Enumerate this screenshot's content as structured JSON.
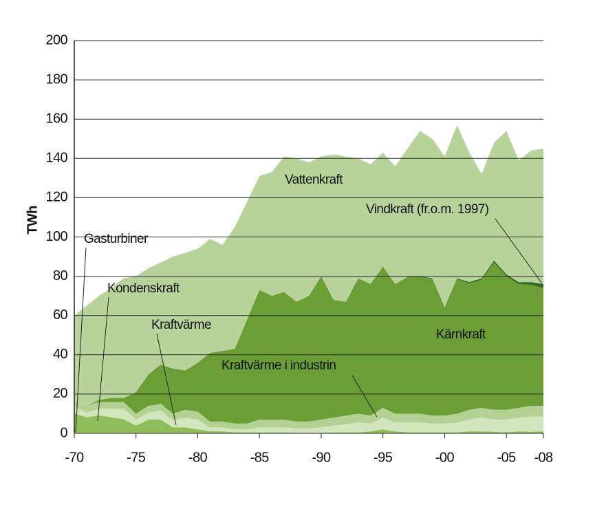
{
  "chart_data": {
    "type": "area",
    "stacked": true,
    "y_label": "TWh",
    "x": [
      1970,
      1971,
      1972,
      1973,
      1974,
      1975,
      1976,
      1977,
      1978,
      1979,
      1980,
      1981,
      1982,
      1983,
      1984,
      1985,
      1986,
      1987,
      1988,
      1989,
      1990,
      1991,
      1992,
      1993,
      1994,
      1995,
      1996,
      1997,
      1998,
      1999,
      2000,
      2001,
      2002,
      2003,
      2004,
      2005,
      2006,
      2007,
      2008
    ],
    "xlim": [
      1970,
      2008
    ],
    "xticks": [
      {
        "value": 1970,
        "label": "-70"
      },
      {
        "value": 1975,
        "label": "-75"
      },
      {
        "value": 1980,
        "label": "-80"
      },
      {
        "value": 1985,
        "label": "-85"
      },
      {
        "value": 1990,
        "label": "-90"
      },
      {
        "value": 1995,
        "label": "-95"
      },
      {
        "value": 2000,
        "label": "-00"
      },
      {
        "value": 2005,
        "label": "-05"
      },
      {
        "value": 2008,
        "label": "-08"
      }
    ],
    "ylim": [
      0,
      200
    ],
    "yticks": [
      0,
      20,
      40,
      60,
      80,
      100,
      120,
      140,
      160,
      180,
      200
    ],
    "grid": true,
    "series": [
      {
        "name": "Gasturbiner",
        "color": "#6f9c3e",
        "values": [
          0.2,
          0.2,
          0.2,
          0.2,
          0.2,
          0,
          0,
          0,
          0,
          0,
          0,
          0,
          0,
          0,
          0,
          0,
          0,
          0,
          0,
          0,
          0,
          0,
          0,
          0,
          0,
          0,
          0,
          0,
          0,
          0,
          0,
          0,
          0,
          0,
          0,
          0,
          0,
          0,
          0
        ]
      },
      {
        "name": "Kondenskraft",
        "color": "#8fbd5a",
        "values": [
          10,
          8,
          9,
          8,
          7,
          4,
          7,
          7,
          3,
          3,
          2,
          1,
          1,
          0.5,
          0.5,
          0.5,
          0.5,
          0.5,
          0.3,
          0.3,
          0.3,
          0.5,
          0.5,
          0.5,
          1,
          2,
          1,
          0.5,
          0.5,
          0.5,
          0.5,
          0.5,
          1,
          1,
          0.8,
          0.5,
          1,
          0.8,
          1
        ]
      },
      {
        "name": "Kraftvärme",
        "color": "#d3e5bd",
        "values": [
          3.3,
          2.3,
          3.3,
          4.3,
          5.3,
          3,
          3.5,
          4.5,
          3.5,
          5,
          5,
          2,
          2,
          1.5,
          1.5,
          2.5,
          2.5,
          2.5,
          2.2,
          2.2,
          2.7,
          3.5,
          4,
          5,
          4,
          6,
          4.5,
          5,
          5,
          4.5,
          4.5,
          5,
          6,
          7,
          6.2,
          6.5,
          7,
          7.7,
          7.5
        ]
      },
      {
        "name": "Kraftvärme i industrin",
        "color": "#b3d193",
        "values": [
          3.5,
          3.5,
          3.5,
          3.5,
          3.5,
          3,
          3.5,
          3.5,
          3.5,
          4,
          4,
          3,
          3,
          3,
          3,
          4,
          4,
          4,
          3.5,
          3.5,
          4,
          4,
          4.5,
          4.5,
          4,
          5,
          4.5,
          4.5,
          4.5,
          4,
          4,
          4.5,
          5,
          5,
          5,
          5,
          5,
          5.5,
          5.5
        ]
      },
      {
        "name": "Kärnkraft",
        "color": "#6b9e34",
        "values": [
          0,
          0,
          1,
          2,
          2,
          11,
          16,
          20,
          23,
          20,
          25,
          35,
          36,
          38,
          53,
          66,
          63,
          65,
          61,
          64,
          73,
          60,
          58,
          69,
          67,
          72,
          66,
          69.8,
          69.7,
          69.6,
          54.5,
          68.5,
          64.4,
          65.3,
          75.1,
          68.1,
          63,
          61.6,
          60
        ]
      },
      {
        "name": "Vindkraft (fr.o.m. 1997)",
        "color": "#2f6a27",
        "values": [
          null,
          null,
          null,
          null,
          null,
          null,
          null,
          null,
          null,
          null,
          null,
          null,
          null,
          null,
          null,
          null,
          null,
          null,
          null,
          null,
          null,
          null,
          null,
          null,
          null,
          null,
          null,
          0.2,
          0.3,
          0.4,
          0.5,
          0.5,
          0.6,
          0.7,
          0.9,
          0.9,
          1,
          1.4,
          2
        ]
      },
      {
        "name": "Vattenkraft",
        "color": "#b8d39a",
        "values": [
          43,
          51,
          53,
          56,
          61,
          59,
          54,
          52,
          57,
          60,
          58,
          58,
          54,
          62,
          60,
          58,
          63,
          69,
          73,
          68,
          61,
          74,
          74,
          61,
          61,
          58,
          60,
          65,
          74,
          71,
          77,
          78,
          66,
          53,
          60,
          73,
          62,
          67,
          69
        ]
      }
    ]
  }
}
